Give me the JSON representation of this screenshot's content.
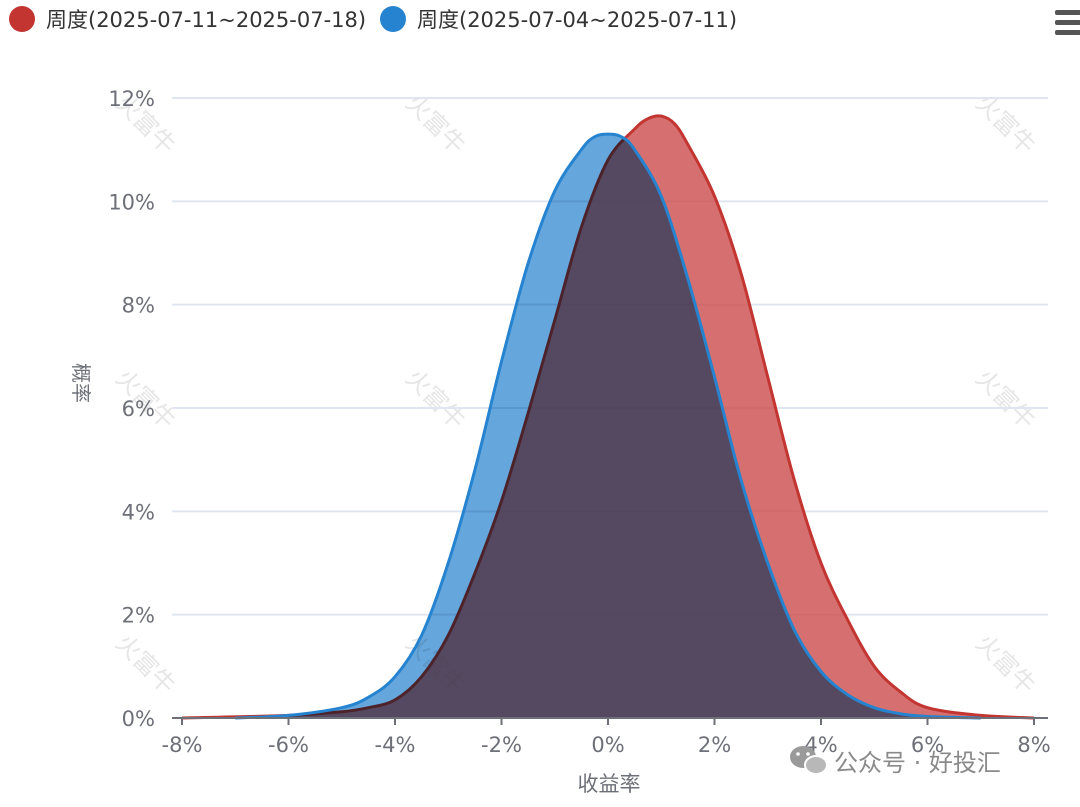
{
  "menu": {
    "icon": "hamburger-menu-icon"
  },
  "chart_data": {
    "type": "area",
    "title": "",
    "xlabel": "收益率",
    "ylabel": "概率",
    "xlim": [
      -8,
      8
    ],
    "ylim": [
      0,
      12
    ],
    "x_ticks": [
      "-8%",
      "-6%",
      "-4%",
      "-2%",
      "0%",
      "2%",
      "4%",
      "6%",
      "8%"
    ],
    "y_ticks": [
      "0%",
      "2%",
      "4%",
      "6%",
      "8%",
      "10%",
      "12%"
    ],
    "grid": true,
    "legend_position": "top-left",
    "watermark": [
      "火富牛"
    ],
    "attribution": "公众号 · 好投汇",
    "series": [
      {
        "name": "周度(2025-07-11~2025-07-18)",
        "color": "#C23531",
        "fill": "#CC4C4C",
        "x": [
          -8,
          -6,
          -5,
          -4.5,
          -4,
          -3.5,
          -3,
          -2.5,
          -2,
          -1.5,
          -1,
          -0.5,
          0,
          0.5,
          0.75,
          1,
          1.25,
          1.5,
          2,
          2.5,
          3,
          3.5,
          4,
          4.5,
          5,
          5.5,
          6,
          7,
          8
        ],
        "y": [
          0,
          0.05,
          0.12,
          0.2,
          0.35,
          0.8,
          1.6,
          2.8,
          4.2,
          5.9,
          7.7,
          9.5,
          10.8,
          11.4,
          11.6,
          11.65,
          11.5,
          11.1,
          10.1,
          8.6,
          6.6,
          4.6,
          3.0,
          1.9,
          1.0,
          0.5,
          0.2,
          0.05,
          0
        ]
      },
      {
        "name": "周度(2025-07-04~2025-07-11)",
        "color": "#2683D0",
        "fill": "#4A97D6",
        "x": [
          -7,
          -6,
          -5,
          -4.5,
          -4,
          -3.5,
          -3,
          -2.5,
          -2,
          -1.5,
          -1,
          -0.5,
          -0.25,
          0,
          0.25,
          0.5,
          1,
          1.5,
          2,
          2.5,
          3,
          3.5,
          4,
          4.5,
          5,
          5.5,
          6,
          7
        ],
        "y": [
          0,
          0.05,
          0.2,
          0.4,
          0.8,
          1.6,
          3.0,
          4.8,
          6.9,
          8.8,
          10.2,
          11.0,
          11.25,
          11.3,
          11.25,
          11.0,
          10.1,
          8.5,
          6.6,
          4.6,
          3.0,
          1.7,
          0.9,
          0.45,
          0.2,
          0.08,
          0.03,
          0
        ]
      }
    ]
  }
}
